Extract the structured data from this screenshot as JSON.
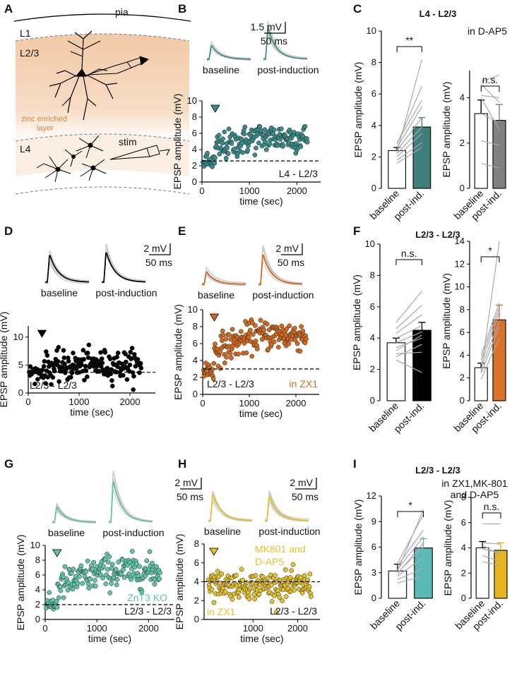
{
  "colors": {
    "teal": "#3a8c8a",
    "teal_fill": "#3f7f7d",
    "black": "#000000",
    "orange": "#d2691e",
    "orange_fill": "#d9722d",
    "mint": "#5fc4a8",
    "mint_fill": "#58b9b7",
    "yellow": "#e6c229",
    "yellow_fill": "#e8b51f",
    "grey": "#b8b8b8",
    "grey_fill": "#808080",
    "layer": "#f6dcc6"
  },
  "panel_a": {
    "letter": "A",
    "pia": "pia",
    "l1": "L1",
    "l23": "L2/3",
    "zinc": [
      "zinc enriched",
      "layer"
    ],
    "l4": "L4",
    "stim": "stim"
  },
  "panel_letters": {
    "b": "B",
    "c": "C",
    "d": "D",
    "e": "E",
    "f": "F",
    "g": "G",
    "h": "H",
    "i": "I"
  },
  "traces": {
    "b": {
      "scale_y": "1.5 mV",
      "scale_x": "50 ms",
      "label_before": "baseline",
      "label_after": "post-induction"
    },
    "d": {
      "scale_y": "2 mV",
      "scale_x": "50 ms",
      "label_before": "baseline",
      "label_after": "post-induction"
    },
    "e": {
      "scale_y": "2 mV",
      "scale_x": "50 ms",
      "label_before": "baseline",
      "label_after": "post-induction"
    },
    "g": {
      "scale_y": "2 mV",
      "scale_x": "50 ms",
      "label_before": "baseline",
      "label_after": "post-induction"
    },
    "h": {
      "scale_y": "2 mV",
      "scale_x": "50 ms",
      "label_before": "baseline",
      "label_after": "post-induction"
    }
  },
  "chart_data": [
    {
      "id": "B",
      "type": "scatter",
      "ylabel": "EPSP amplitude (mV)",
      "xlabel": "time (sec)",
      "xlim": [
        0,
        2500
      ],
      "ylim": [
        0,
        10
      ],
      "xticks": [
        0,
        1000,
        2000
      ],
      "yticks": [
        0,
        2,
        4,
        6,
        8,
        10
      ],
      "baseline": 2.6,
      "pre_level": 2.5,
      "post_level": 5.5,
      "pre_sd": 0.5,
      "post_sd": 0.9,
      "induction_time": 280,
      "n_points": 190,
      "annotation": "L4 - L2/3",
      "color": "teal"
    },
    {
      "id": "C1",
      "type": "bar",
      "title": "L4 - L2/3",
      "categories": [
        "baseline",
        "post-ind."
      ],
      "values": [
        2.4,
        3.9
      ],
      "errors": [
        0.2,
        0.6
      ],
      "ylabel": "EPSP amplitude (mV)",
      "ylim": [
        0,
        10
      ],
      "yticks": [
        0,
        2,
        4,
        6,
        8,
        10
      ],
      "significance": "**",
      "pairs": [
        [
          1.6,
          2.6
        ],
        [
          1.8,
          2.9
        ],
        [
          2.0,
          3.5
        ],
        [
          2.2,
          3.9
        ],
        [
          2.4,
          4.5
        ],
        [
          2.6,
          5.2
        ],
        [
          2.9,
          5.6
        ],
        [
          2.3,
          8.2
        ],
        [
          2.8,
          6.5
        ]
      ],
      "color": "teal_fill"
    },
    {
      "id": "C2",
      "type": "bar",
      "title": "in D-AP5",
      "categories": [
        "baseline",
        "post-ind."
      ],
      "values": [
        3.3,
        3.0
      ],
      "errors": [
        0.6,
        0.7
      ],
      "ylabel": "EPSP amplitude (mV)",
      "ylim": [
        0,
        5.2
      ],
      "yticks": [
        0,
        2,
        4
      ],
      "significance": "n.s.",
      "pairs": [
        [
          1.1,
          0.9
        ],
        [
          2.1,
          1.9
        ],
        [
          3.3,
          2.9
        ],
        [
          4.1,
          4.0
        ],
        [
          4.6,
          3.8
        ],
        [
          4.7,
          5.0
        ],
        [
          4.0,
          2.6
        ]
      ],
      "color": "grey_fill"
    },
    {
      "id": "D",
      "type": "scatter",
      "ylabel": "EPSP amplitude (mV)",
      "xlabel": "time (sec)",
      "xlim": [
        0,
        2500
      ],
      "ylim": [
        0,
        12
      ],
      "xticks": [
        0,
        1000,
        2000
      ],
      "yticks": [
        0,
        5,
        10
      ],
      "baseline": 3.7,
      "pre_level": 3.7,
      "post_level": 5.0,
      "pre_sd": 0.6,
      "post_sd": 1.3,
      "induction_time": 270,
      "n_points": 200,
      "annotation": "L2/3 - L2/3",
      "color": "black"
    },
    {
      "id": "E",
      "type": "scatter",
      "ylabel": "EPSP amplitude (mV)",
      "xlabel": "time (sec)",
      "xlim": [
        0,
        2500
      ],
      "ylim": [
        0,
        10
      ],
      "xticks": [
        0,
        1000,
        2000
      ],
      "yticks": [
        0,
        2,
        4,
        6,
        8,
        10
      ],
      "baseline": 3.0,
      "pre_level": 2.9,
      "post_level": 7.0,
      "pre_sd": 0.6,
      "post_sd": 0.9,
      "induction_time": 250,
      "n_points": 190,
      "annotation": "L2/3 - L2/3",
      "annotation2": "in ZX1",
      "color": "orange"
    },
    {
      "id": "F1",
      "type": "bar",
      "title": "L2/3 - L2/3",
      "categories": [
        "baseline",
        "post-ind."
      ],
      "values": [
        3.7,
        4.5
      ],
      "errors": [
        0.3,
        0.5
      ],
      "ylabel": "EPSP amplitude (mV)",
      "ylim": [
        0,
        10
      ],
      "yticks": [
        0,
        2,
        4,
        6,
        8,
        10
      ],
      "significance": "n.s.",
      "pairs": [
        [
          2.6,
          1.8
        ],
        [
          3.0,
          3.1
        ],
        [
          3.4,
          4.0
        ],
        [
          3.7,
          4.4
        ],
        [
          4.0,
          4.8
        ],
        [
          4.3,
          5.5
        ],
        [
          4.6,
          6.1
        ],
        [
          5.0,
          7.0
        ],
        [
          3.2,
          4.2
        ],
        [
          2.8,
          3.6
        ]
      ],
      "color": "black"
    },
    {
      "id": "F2",
      "type": "bar",
      "title": "",
      "categories": [
        "baseline",
        "post-ind."
      ],
      "values": [
        2.9,
        7.1
      ],
      "errors": [
        0.4,
        1.3
      ],
      "ylabel": "EPSP amplitude (mV)",
      "ylim": [
        0,
        14
      ],
      "yticks": [
        0,
        2,
        4,
        6,
        8,
        10,
        12,
        14
      ],
      "significance": "*",
      "pairs": [
        [
          1.9,
          5.5
        ],
        [
          2.4,
          6.5
        ],
        [
          2.8,
          7.0
        ],
        [
          3.2,
          7.8
        ],
        [
          3.6,
          8.2
        ],
        [
          4.0,
          8.6
        ],
        [
          2.5,
          14.0
        ]
      ],
      "color": "orange_fill"
    },
    {
      "id": "G",
      "type": "scatter",
      "ylabel": "EPSP amplitude (mV)",
      "xlabel": "time (sec)",
      "xlim": [
        0,
        2500
      ],
      "ylim": [
        0,
        10
      ],
      "xticks": [
        0,
        1000,
        2000
      ],
      "yticks": [
        0,
        2,
        4,
        6,
        8,
        10
      ],
      "baseline": 2.0,
      "pre_level": 2.0,
      "post_level": 6.5,
      "pre_sd": 0.5,
      "post_sd": 1.1,
      "induction_time": 230,
      "n_points": 190,
      "annotation": "L2/3 - L2/3",
      "annotation2": "ZnT3 KO",
      "color": "mint"
    },
    {
      "id": "H",
      "type": "scatter",
      "ylabel": "EPSP amplitude (mV)",
      "xlabel": "time (sec)",
      "xlim": [
        -100,
        2500
      ],
      "ylim": [
        0,
        8
      ],
      "xticks": [
        1000,
        2000
      ],
      "yticks": [
        0,
        2,
        4,
        6,
        8
      ],
      "baseline": 4.0,
      "pre_level": 4.0,
      "post_level": 3.6,
      "pre_sd": 0.6,
      "post_sd": 0.7,
      "induction_time": 120,
      "n_points": 190,
      "annotation": "L2/3 - L2/3",
      "annotation2": "in ZX1",
      "annotation3": [
        "MK801 and",
        "D-AP5"
      ],
      "color": "yellow"
    },
    {
      "id": "I1",
      "type": "bar",
      "title": "L2/3 - L2/3",
      "categories": [
        "baseline",
        "post-ind."
      ],
      "values": [
        3.2,
        5.9
      ],
      "errors": [
        0.8,
        1.1
      ],
      "ylabel": "EPSP amplitude (mV)",
      "ylim": [
        0,
        12
      ],
      "yticks": [
        0,
        3,
        6,
        9,
        12
      ],
      "significance": "*",
      "pairs": [
        [
          1.8,
          2.6
        ],
        [
          2.2,
          3.5
        ],
        [
          2.6,
          4.8
        ],
        [
          3.0,
          6.0
        ],
        [
          3.4,
          7.2
        ],
        [
          3.8,
          8.0
        ],
        [
          4.1,
          9.8
        ],
        [
          3.2,
          10.4
        ],
        [
          2.9,
          6.5
        ]
      ],
      "color": "mint_fill"
    },
    {
      "id": "I2",
      "type": "bar",
      "title": "in ZX1,MK-801 and D-AP5",
      "categories": [
        "baseline",
        "post-ind."
      ],
      "values": [
        4.0,
        3.8
      ],
      "errors": [
        0.5,
        0.6
      ],
      "ylabel": "EPSP amplitude (mV)",
      "ylim": [
        0,
        8
      ],
      "yticks": [
        0,
        2,
        4,
        6,
        8
      ],
      "significance": "n.s.",
      "pairs": [
        [
          5.9,
          5.9
        ],
        [
          4.4,
          4.3
        ],
        [
          3.9,
          3.6
        ],
        [
          3.4,
          2.9
        ],
        [
          2.9,
          2.6
        ],
        [
          4.2,
          3.4
        ]
      ],
      "color": "yellow_fill"
    }
  ]
}
